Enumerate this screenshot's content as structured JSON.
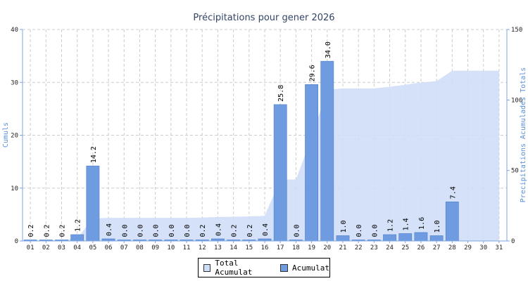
{
  "chart_data": {
    "type": "bar",
    "title": "Précipitations pour gener 2026",
    "ylabel": "Cumuls",
    "y2label": "Precipitations Acumulades Totals",
    "ylim": [
      0,
      40
    ],
    "y2lim": [
      0,
      150
    ],
    "yticks": [
      "0",
      "10",
      "20",
      "30",
      "40"
    ],
    "y2ticks": [
      "0",
      "50",
      "100",
      "150"
    ],
    "grid": true,
    "legend_position": "bottom-center",
    "categories": [
      "01",
      "02",
      "03",
      "04",
      "05",
      "06",
      "07",
      "08",
      "09",
      "10",
      "11",
      "12",
      "13",
      "14",
      "15",
      "16",
      "17",
      "18",
      "19",
      "20",
      "21",
      "22",
      "23",
      "24",
      "25",
      "26",
      "27",
      "28",
      "29",
      "30",
      "31"
    ],
    "series": [
      {
        "name": "Acumulat",
        "type": "bar",
        "axis": "left",
        "color": "#6f9be0",
        "values": [
          0.2,
          0.2,
          0.2,
          1.2,
          14.2,
          0.4,
          0.0,
          0.0,
          0.0,
          0.0,
          0.0,
          0.2,
          0.4,
          0.2,
          0.2,
          0.4,
          25.8,
          0.0,
          29.6,
          34.0,
          1.0,
          0.0,
          0.0,
          1.2,
          1.4,
          1.6,
          1.0,
          7.4,
          null,
          null,
          null
        ],
        "labels": [
          "0.2",
          "0.2",
          "0.2",
          "1.2",
          "14.2",
          "0.4",
          "0.0",
          "0.0",
          "0.0",
          "0.0",
          "0.0",
          "0.2",
          "0.4",
          "0.2",
          "0.2",
          "0.4",
          "25.8",
          "0.0",
          "29.6",
          "34.0",
          "1.0",
          "0.0",
          "0.0",
          "1.2",
          "1.4",
          "1.6",
          "1.0",
          "7.4",
          "",
          "",
          ""
        ]
      },
      {
        "name": "Total Acumulat",
        "type": "area",
        "axis": "right",
        "color": "#cfdef8",
        "values": [
          0.2,
          0.4,
          0.6,
          1.8,
          16.0,
          16.4,
          16.4,
          16.4,
          16.4,
          16.4,
          16.4,
          16.6,
          17.0,
          17.2,
          17.4,
          17.8,
          43.6,
          43.6,
          73.2,
          107.2,
          108.2,
          108.2,
          108.2,
          109.4,
          110.8,
          112.4,
          113.4,
          120.8,
          120.8,
          120.8,
          120.8
        ]
      }
    ]
  },
  "legend": {
    "total_label": "Total Acumulat",
    "daily_label": "Acumulat"
  }
}
